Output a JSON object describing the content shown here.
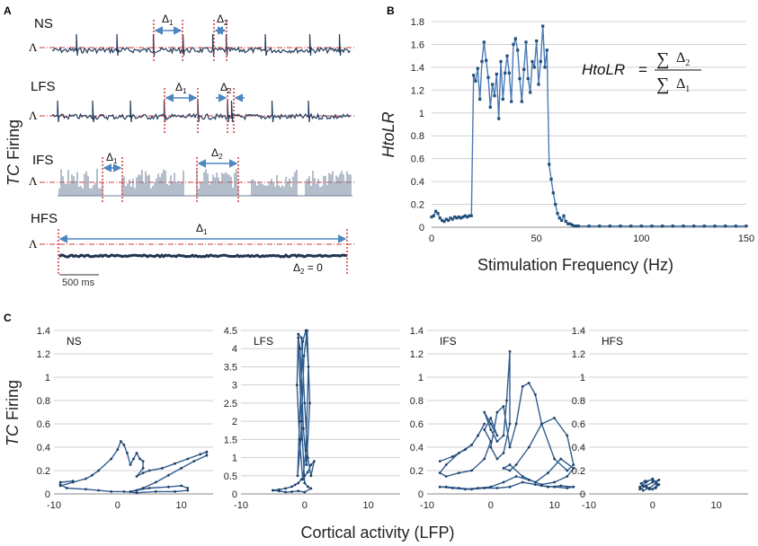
{
  "panel_labels": {
    "a": "A",
    "b": "B",
    "c": "C"
  },
  "panel_a": {
    "ylabel_italic": "TC",
    "ylabel_rest": " Firing",
    "threshold_symbol": "Λ",
    "scale_bar_label": "500 ms",
    "rows": [
      {
        "name": "NS",
        "d1": "Δ",
        "d1_sub": "1",
        "d2": "Δ",
        "d2_sub": "2"
      },
      {
        "name": "LFS",
        "d1": "Δ",
        "d1_sub": "1",
        "d2": "Δ",
        "d2_sub": "2"
      },
      {
        "name": "IFS",
        "d1": "Δ",
        "d1_sub": "1",
        "d2": "Δ",
        "d2_sub": "2"
      },
      {
        "name": "HFS",
        "d1": "Δ",
        "d1_sub": "1",
        "d2": "Δ",
        "d2_sub": "2",
        "d2_value": " = 0"
      }
    ]
  },
  "chart_data": [
    {
      "type": "line",
      "panel": "B",
      "title": "",
      "xlabel": "Stimulation Frequency (Hz)",
      "ylabel": "HtoLR",
      "xlim": [
        0,
        150
      ],
      "ylim": [
        0,
        1.8
      ],
      "xticks": [
        "0",
        "50",
        "100",
        "150"
      ],
      "yticks": [
        "0",
        "0.2",
        "0.4",
        "0.6",
        "0.8",
        "1",
        "1.2",
        "1.4",
        "1.6",
        "1.8"
      ],
      "formula": {
        "lhs": "HtoLR",
        "eq": "=",
        "sum": "∑",
        "num": "Δ",
        "num_sub": "2",
        "den": "Δ",
        "den_sub": "1"
      },
      "series": [
        {
          "name": "HtoLR",
          "color": "#1f4e79",
          "x": [
            0,
            1,
            2,
            3,
            4,
            5,
            6,
            7,
            8,
            9,
            10,
            11,
            12,
            13,
            14,
            15,
            16,
            17,
            18,
            19,
            20,
            21,
            22,
            23,
            24,
            25,
            26,
            27,
            28,
            29,
            30,
            31,
            32,
            33,
            34,
            35,
            36,
            37,
            38,
            39,
            40,
            41,
            42,
            43,
            44,
            45,
            46,
            47,
            48,
            49,
            50,
            51,
            52,
            53,
            54,
            55,
            56,
            57,
            58,
            59,
            60,
            61,
            62,
            63,
            64,
            65,
            66,
            67,
            68,
            69,
            70,
            75,
            80,
            85,
            90,
            95,
            100,
            105,
            110,
            115,
            120,
            125,
            130,
            135,
            140,
            145,
            150
          ],
          "y": [
            0.09,
            0.1,
            0.14,
            0.12,
            0.08,
            0.06,
            0.05,
            0.07,
            0.06,
            0.08,
            0.07,
            0.09,
            0.08,
            0.09,
            0.08,
            0.09,
            0.1,
            0.09,
            0.1,
            0.1,
            1.33,
            1.28,
            1.39,
            1.12,
            1.45,
            1.62,
            1.46,
            1.31,
            1.05,
            1.25,
            1.15,
            1.34,
            0.95,
            1.45,
            1.12,
            1.35,
            1.5,
            1.35,
            1.1,
            1.6,
            1.65,
            1.55,
            1.3,
            1.1,
            1.38,
            1.62,
            1.3,
            1.18,
            1.45,
            1.4,
            1.63,
            1.25,
            1.45,
            1.76,
            1.4,
            1.55,
            0.55,
            0.42,
            0.3,
            0.2,
            0.12,
            0.08,
            0.06,
            0.1,
            0.05,
            0.03,
            0.03,
            0.02,
            0.01,
            0.01,
            0.01,
            0.01,
            0.01,
            0.01,
            0.01,
            0.01,
            0.01,
            0.01,
            0.01,
            0.01,
            0.01,
            0.01,
            0.01,
            0.01,
            0.01,
            0.01,
            0.01
          ]
        }
      ]
    },
    {
      "type": "line",
      "panel": "C",
      "subpanel": "NS",
      "title": "NS",
      "xlabel": "Cortical activity (LFP)",
      "ylabel": "TC Firing",
      "xlim": [
        -10,
        15
      ],
      "ylim": [
        0,
        1.4
      ],
      "xticks": [
        "-10",
        "0",
        "10"
      ],
      "yticks": [
        "0",
        "0.2",
        "0.4",
        "0.6",
        "0.8",
        "1",
        "1.2",
        "1.4"
      ],
      "series": [
        {
          "name": "NS trajectory",
          "x": [
            -9,
            -7,
            -5,
            -4,
            -3,
            -1,
            0,
            0.5,
            1,
            1.5,
            2,
            2.5,
            3,
            3.5,
            4,
            4,
            3,
            4,
            5,
            7,
            9,
            11,
            13,
            14,
            14,
            12,
            10,
            8,
            6,
            4,
            2,
            3,
            5,
            8,
            10,
            11,
            11,
            9,
            6,
            3,
            1,
            -1,
            -3,
            -5,
            -8,
            -9,
            -9,
            -7
          ],
          "y": [
            0.07,
            0.1,
            0.13,
            0.16,
            0.2,
            0.3,
            0.38,
            0.45,
            0.42,
            0.35,
            0.25,
            0.3,
            0.35,
            0.3,
            0.28,
            0.22,
            0.15,
            0.18,
            0.2,
            0.22,
            0.26,
            0.3,
            0.34,
            0.36,
            0.33,
            0.28,
            0.22,
            0.16,
            0.1,
            0.05,
            0.02,
            0.03,
            0.05,
            0.06,
            0.07,
            0.05,
            0.03,
            0.02,
            0.02,
            0.01,
            0.02,
            0.02,
            0.03,
            0.04,
            0.05,
            0.08,
            0.1,
            0.11
          ]
        }
      ]
    },
    {
      "type": "line",
      "panel": "C",
      "subpanel": "LFS",
      "title": "LFS",
      "xlabel": "Cortical activity (LFP)",
      "ylabel": "",
      "xlim": [
        -10,
        15
      ],
      "ylim": [
        0,
        4.5
      ],
      "xticks": [
        "-10",
        "0",
        "10"
      ],
      "yticks": [
        "0",
        "0.5",
        "1",
        "1.5",
        "2",
        "2.5",
        "3",
        "3.5",
        "4",
        "4.5"
      ],
      "series": [
        {
          "name": "LFS trajectory",
          "x": [
            -5,
            -4,
            -3,
            -2,
            -1.5,
            -1,
            -0.5,
            0,
            0.5,
            1,
            1.5,
            1,
            0.5,
            0,
            -0.5,
            -1,
            -1.2,
            -0.8,
            -0.3,
            0.2,
            0.6,
            0.2,
            -0.3,
            -0.8,
            -1.1,
            -0.6,
            -0.1,
            0.4,
            0.8,
            0.3,
            -0.2,
            -0.7,
            -1,
            -0.5,
            0,
            0.5,
            1,
            0,
            -1,
            -2,
            -3,
            -4,
            -5
          ],
          "y": [
            0.1,
            0.12,
            0.15,
            0.2,
            0.25,
            0.3,
            0.4,
            0.5,
            0.6,
            0.8,
            0.9,
            0.5,
            1.0,
            2.5,
            4.3,
            4.4,
            3.0,
            1.5,
            0.4,
            1.2,
            3.5,
            4.5,
            4.2,
            2.0,
            0.5,
            1.5,
            3.8,
            4.5,
            2.5,
            0.8,
            1.8,
            4.0,
            4.3,
            2.0,
            0.3,
            0.2,
            0.15,
            0.05,
            0.08,
            0.06,
            0.05,
            0.08,
            0.1
          ]
        }
      ]
    },
    {
      "type": "line",
      "panel": "C",
      "subpanel": "IFS",
      "title": "IFS",
      "xlabel": "Cortical activity (LFP)",
      "ylabel": "",
      "xlim": [
        -10,
        15
      ],
      "ylim": [
        0,
        1.4
      ],
      "xticks": [
        "-10",
        "0",
        "10"
      ],
      "yticks": [
        "0",
        "0.2",
        "0.4",
        "0.6",
        "0.8",
        "1",
        "1.2",
        "1.4"
      ],
      "series": [
        {
          "name": "IFS trajectory",
          "x": [
            -8,
            -6,
            -4,
            -3,
            -2,
            -1,
            -2,
            -3,
            -5,
            -7,
            -8,
            -7,
            -5,
            -3,
            -1,
            0,
            -1,
            0,
            1,
            0,
            -1,
            0,
            1,
            2,
            2.5,
            3,
            3,
            2,
            1,
            0,
            1,
            2,
            3,
            4,
            5,
            6,
            7,
            8,
            10,
            12,
            13,
            12,
            10,
            8,
            6,
            4,
            3,
            2,
            3,
            5,
            7,
            9,
            11,
            13,
            12,
            10,
            8,
            6,
            4,
            2,
            0,
            -2,
            -4,
            -6,
            -8,
            -7,
            -5,
            -3,
            -1,
            1,
            3,
            5,
            7,
            9,
            11,
            13,
            12,
            10,
            8
          ],
          "y": [
            0.28,
            0.32,
            0.38,
            0.42,
            0.5,
            0.6,
            0.5,
            0.42,
            0.35,
            0.25,
            0.18,
            0.15,
            0.18,
            0.2,
            0.3,
            0.45,
            0.55,
            0.65,
            0.5,
            0.6,
            0.7,
            0.55,
            0.45,
            0.5,
            0.8,
            1.22,
            0.6,
            0.35,
            0.3,
            0.4,
            0.7,
            0.75,
            0.4,
            0.6,
            0.92,
            0.95,
            0.85,
            0.6,
            0.3,
            0.2,
            0.25,
            0.5,
            0.65,
            0.6,
            0.4,
            0.25,
            0.2,
            0.22,
            0.25,
            0.15,
            0.1,
            0.18,
            0.3,
            0.22,
            0.15,
            0.1,
            0.08,
            0.12,
            0.15,
            0.1,
            0.06,
            0.05,
            0.04,
            0.05,
            0.06,
            0.06,
            0.05,
            0.04,
            0.05,
            0.05,
            0.06,
            0.1,
            0.08,
            0.06,
            0.07,
            0.06,
            0.05,
            0.06,
            0.07
          ]
        }
      ]
    },
    {
      "type": "line",
      "panel": "C",
      "subpanel": "HFS",
      "title": "HFS",
      "xlabel": "Cortical activity (LFP)",
      "ylabel": "",
      "xlim": [
        -10,
        15
      ],
      "ylim": [
        0,
        1.4
      ],
      "xticks": [
        "-10",
        "0",
        "10"
      ],
      "yticks": [
        "0",
        "0.2",
        "0.4",
        "0.6",
        "0.8",
        "1",
        "1.2",
        "1.4"
      ],
      "series": [
        {
          "name": "HFS trajectory",
          "x": [
            -2,
            -1,
            0,
            1,
            0.5,
            -0.5,
            -1.5,
            -2,
            -1,
            0,
            0.8,
            0,
            -1,
            -1.8,
            -1.2,
            0,
            1,
            0.5,
            -0.5,
            -1.5
          ],
          "y": [
            0.04,
            0.07,
            0.1,
            0.12,
            0.09,
            0.05,
            0.03,
            0.06,
            0.1,
            0.13,
            0.08,
            0.04,
            0.06,
            0.09,
            0.11,
            0.12,
            0.08,
            0.05,
            0.04,
            0.07
          ]
        }
      ]
    }
  ]
}
